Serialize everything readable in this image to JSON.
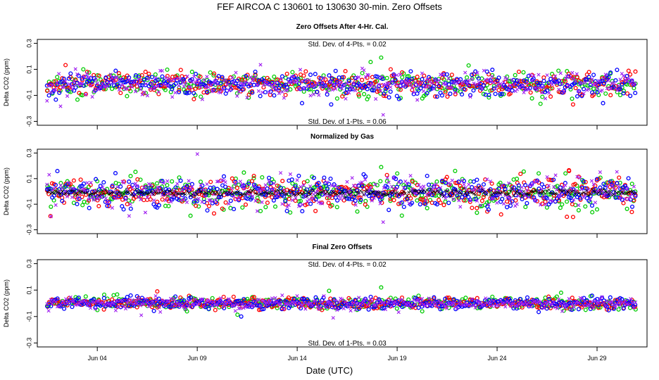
{
  "figure": {
    "title": "FEF   AIRCOA C   130601 to 130630   30-min. Zero Offsets",
    "xlabel": "Date (UTC)"
  },
  "series_colors": {
    "green": "#00cc00",
    "red": "#ff0000",
    "blue": "#0000ff",
    "purple": "#a020f0",
    "gas-avg": "#000000"
  },
  "chart_data": [
    {
      "type": "scatter",
      "title": "Zero Offsets After 4-Hr. Cal.",
      "ylabel": "Delta CO2 (ppm)",
      "xlim": [
        1,
        31.5
      ],
      "ylim": [
        -0.33,
        0.33
      ],
      "x_ticks": [
        4,
        9,
        14,
        19,
        24,
        29
      ],
      "x_tick_labels": [
        "Jun 04",
        "Jun 09",
        "Jun 14",
        "Jun 19",
        "Jun 24",
        "Jun 29"
      ],
      "y_ticks": [
        -0.3,
        -0.1,
        0.1,
        0.3
      ],
      "y_tick_labels": [
        "-0.3",
        "-0.1",
        "0.1",
        "0.3"
      ],
      "annotations": {
        "top": "Std. Dev. of 4-Pts. =  0.02",
        "bottom": "Std. Dev. of 1-Pts. =  0.06"
      },
      "x_start": 1.5,
      "x_end": 31.0,
      "points_per_day": 12,
      "spread": 0.045,
      "offset": -0.015,
      "series": [
        {
          "color_key": "green",
          "marker": "circle"
        },
        {
          "color_key": "red",
          "marker": "circle"
        },
        {
          "color_key": "blue",
          "marker": "circle"
        },
        {
          "color_key": "purple",
          "marker": "cross"
        }
      ],
      "outliers": [
        {
          "x": 18.2,
          "y": 0.19,
          "series": 0
        },
        {
          "x": 18.3,
          "y": -0.25,
          "series": 3
        },
        {
          "x": 27.8,
          "y": -0.17,
          "series": 1
        },
        {
          "x": 3.3,
          "y": 0.1,
          "series": 0
        },
        {
          "x": 29.3,
          "y": -0.16,
          "series": 2
        },
        {
          "x": 15.7,
          "y": -0.17,
          "series": 2
        }
      ]
    },
    {
      "type": "scatter",
      "title": "Normalized by Gas",
      "ylabel": "Delta CO2 (ppm)",
      "xlim": [
        1,
        31.5
      ],
      "ylim": [
        -0.33,
        0.33
      ],
      "x_ticks": [
        4,
        9,
        14,
        19,
        24,
        29
      ],
      "x_tick_labels": [
        "Jun 04",
        "Jun 09",
        "Jun 14",
        "Jun 19",
        "Jun 24",
        "Jun 29"
      ],
      "y_ticks": [
        -0.3,
        -0.1,
        0.1,
        0.3
      ],
      "y_tick_labels": [
        "-0.3",
        "-0.1",
        "0.1",
        "0.3"
      ],
      "x_start": 1.5,
      "x_end": 31.0,
      "points_per_day": 12,
      "spread": 0.06,
      "offset": -0.01,
      "series": [
        {
          "color_key": "green",
          "marker": "circle"
        },
        {
          "color_key": "red",
          "marker": "circle"
        },
        {
          "color_key": "blue",
          "marker": "circle"
        },
        {
          "color_key": "purple",
          "marker": "cross"
        },
        {
          "color_key": "gas-avg",
          "marker": "cross"
        }
      ],
      "outliers": [
        {
          "x": 18.2,
          "y": 0.19,
          "series": 0
        },
        {
          "x": 18.3,
          "y": -0.24,
          "series": 3
        },
        {
          "x": 27.8,
          "y": -0.2,
          "series": 1
        },
        {
          "x": 27.6,
          "y": 0.16,
          "series": 1
        },
        {
          "x": 21.9,
          "y": 0.16,
          "series": 0
        },
        {
          "x": 24.2,
          "y": -0.18,
          "series": 1
        }
      ]
    },
    {
      "type": "scatter",
      "title": "Final Zero Offsets",
      "ylabel": "Delta CO2 (ppm)",
      "xlim": [
        1,
        31.5
      ],
      "ylim": [
        -0.33,
        0.33
      ],
      "x_ticks": [
        4,
        9,
        14,
        19,
        24,
        29
      ],
      "x_tick_labels": [
        "Jun 04",
        "Jun 09",
        "Jun 14",
        "Jun 19",
        "Jun 24",
        "Jun 29"
      ],
      "y_ticks": [
        -0.3,
        -0.1,
        0.1,
        0.3
      ],
      "y_tick_labels": [
        "-0.3",
        "-0.1",
        "0.1",
        "0.3"
      ],
      "annotations": {
        "top": "Std. Dev. of 4-Pts. =  0.02",
        "bottom": "Std. Dev. of 1-Pts. =  0.03"
      },
      "x_start": 1.5,
      "x_end": 31.0,
      "points_per_day": 12,
      "spread": 0.022,
      "offset": 0.0,
      "series": [
        {
          "color_key": "green",
          "marker": "circle"
        },
        {
          "color_key": "red",
          "marker": "circle"
        },
        {
          "color_key": "blue",
          "marker": "circle"
        },
        {
          "color_key": "purple",
          "marker": "cross"
        }
      ],
      "outliers": [
        {
          "x": 18.2,
          "y": 0.12,
          "series": 0
        },
        {
          "x": 11.2,
          "y": -0.1,
          "series": 2
        },
        {
          "x": 7.0,
          "y": 0.09,
          "series": 1
        },
        {
          "x": 15.8,
          "y": -0.11,
          "series": 3
        },
        {
          "x": 27.2,
          "y": 0.08,
          "series": 0
        },
        {
          "x": 6.2,
          "y": -0.09,
          "series": 3
        }
      ]
    }
  ]
}
